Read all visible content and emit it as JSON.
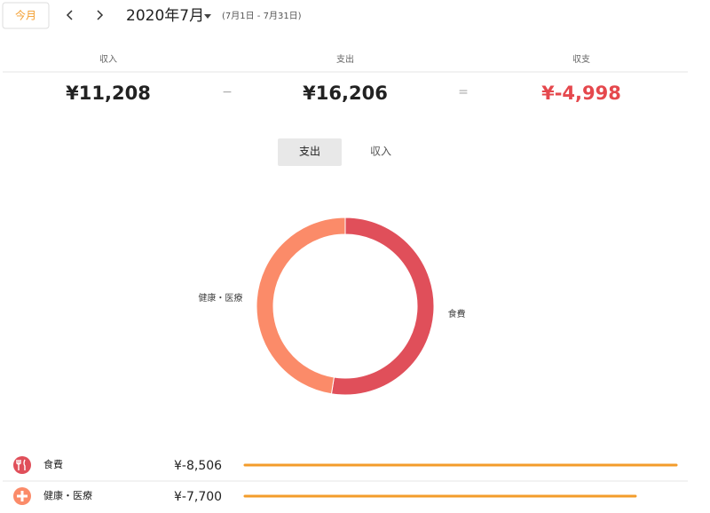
{
  "header": {
    "today_button": "今月",
    "month": "2020年7月",
    "range": "(7月1日 - 7月31日)"
  },
  "summary": {
    "income_label": "収入",
    "expense_label": "支出",
    "balance_label": "収支",
    "income": "¥11,208",
    "minus": "−",
    "expense": "¥16,206",
    "equals": "=",
    "balance": "¥-4,998"
  },
  "tabs": [
    "支出",
    "収入"
  ],
  "chart_data": {
    "type": "pie",
    "categories": [
      "食費",
      "健康・医療"
    ],
    "values": [
      -8506,
      -7700
    ],
    "value_labels": [
      "¥-8,506",
      "¥-7,700"
    ],
    "colors": [
      "#e04f5a",
      "#fb8b69"
    ],
    "bar_color": "#f39c2b"
  }
}
